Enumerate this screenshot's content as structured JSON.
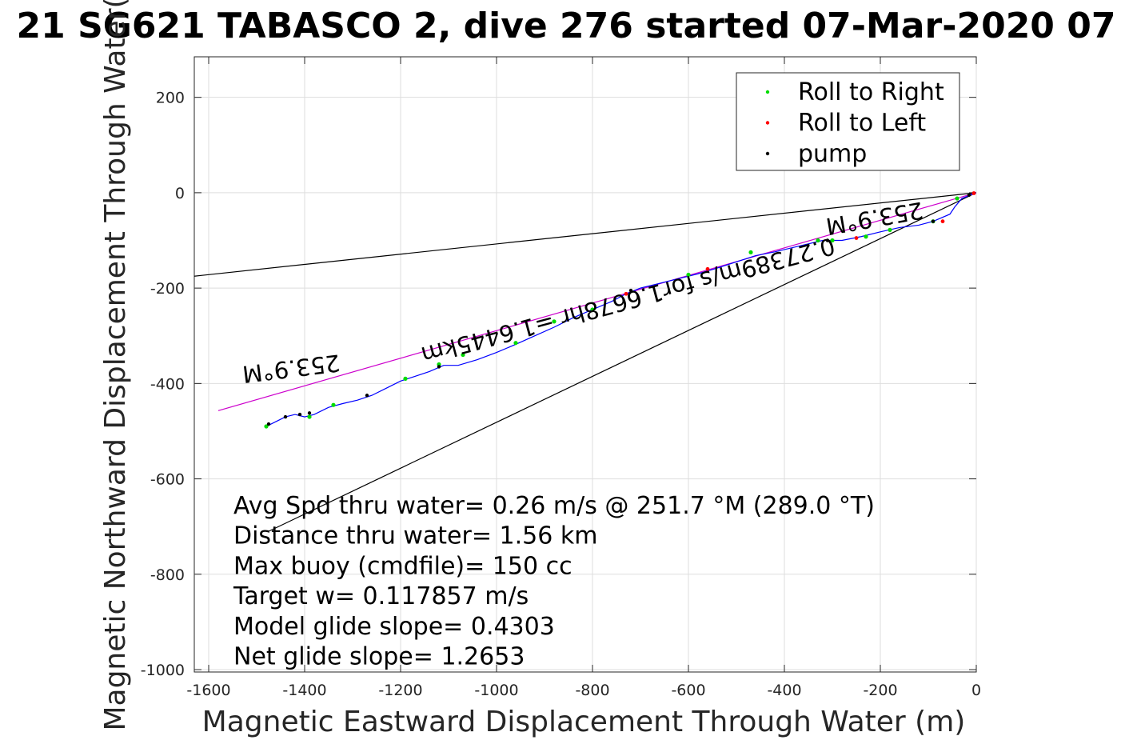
{
  "chart_data": {
    "type": "line",
    "title": "21 SG621 TABASCO 2, dive 276 started 07-Mar-2020 07",
    "xlabel": "Magnetic Eastward Displacement Through Water (m)",
    "ylabel": "Magnetic Northward Displacement Through Water(",
    "xlim": [
      -1630,
      0
    ],
    "ylim": [
      -1005,
      285
    ],
    "xticks": [
      -1600,
      -1400,
      -1200,
      -1000,
      -800,
      -600,
      -400,
      -200,
      0
    ],
    "yticks": [
      200,
      0,
      -200,
      -400,
      -600,
      -800,
      -1000
    ],
    "grid": true,
    "legend_position": "top-right",
    "legend": [
      {
        "label": "Roll to Right",
        "color": "#00dd00"
      },
      {
        "label": "Roll to Left",
        "color": "#ff0000"
      },
      {
        "label": "pump",
        "color": "#000000"
      }
    ],
    "reference_lines": [
      {
        "name": "heading-line-upper",
        "color": "#000000",
        "x": [
          0,
          -1630
        ],
        "y": [
          0,
          -175
        ]
      },
      {
        "name": "heading-line-lower",
        "color": "#000000",
        "x": [
          0,
          -1475
        ],
        "y": [
          0,
          -710
        ]
      },
      {
        "name": "mean-heading-line",
        "color": "#cc00cc",
        "x": [
          0,
          -1580
        ],
        "y": [
          0,
          -457
        ]
      }
    ],
    "track": {
      "color": "#0000ff",
      "x": [
        0,
        -30,
        -45,
        -55,
        -90,
        -120,
        -160,
        -200,
        -240,
        -280,
        -320,
        -370,
        -420,
        -460,
        -500,
        -540,
        -580,
        -620,
        -660,
        -700,
        -730,
        -760,
        -800,
        -840,
        -880,
        -920,
        -960,
        -1000,
        -1040,
        -1080,
        -1110,
        -1140,
        -1170,
        -1200,
        -1230,
        -1260,
        -1290,
        -1320,
        -1350,
        -1380,
        -1400,
        -1420,
        -1440,
        -1460,
        -1480
      ],
      "y": [
        0,
        -12,
        -30,
        -45,
        -60,
        -68,
        -73,
        -82,
        -92,
        -100,
        -100,
        -112,
        -124,
        -132,
        -145,
        -158,
        -170,
        -180,
        -190,
        -200,
        -212,
        -228,
        -245,
        -262,
        -282,
        -300,
        -318,
        -335,
        -350,
        -362,
        -362,
        -375,
        -385,
        -395,
        -410,
        -425,
        -435,
        -442,
        -450,
        -465,
        -470,
        -465,
        -470,
        -480,
        -490
      ]
    },
    "roll_right_x": [
      -40,
      -90,
      -180,
      -230,
      -300,
      -330,
      -470,
      -600,
      -800,
      -880,
      -960,
      -1070,
      -1120,
      -1190,
      -1340,
      -1390,
      -1480
    ],
    "roll_right_y": [
      -12,
      -60,
      -78,
      -92,
      -100,
      -100,
      -125,
      -172,
      -245,
      -270,
      -315,
      -340,
      -360,
      -390,
      -445,
      -470,
      -490
    ],
    "roll_left_x": [
      -5,
      -70,
      -250,
      -560,
      -730
    ],
    "roll_left_y": [
      -1,
      -60,
      -95,
      -160,
      -212
    ],
    "pump_x": [
      -15,
      -90,
      -310,
      -720,
      -1120,
      -1270,
      -1390,
      -1410,
      -1440,
      -1475
    ],
    "pump_y": [
      -5,
      -60,
      -100,
      -205,
      -365,
      -425,
      -462,
      -465,
      -470,
      -485
    ],
    "line_labels": [
      {
        "text": "253.9°M",
        "anchor_x": -1430,
        "anchor_y": -352,
        "rotation": 173
      },
      {
        "text": "0.27389m/s for1.6678hr =1.6445km",
        "anchor_x": -730,
        "anchor_y": -210,
        "rotation": 165
      },
      {
        "text": "253.9°M",
        "anchor_x": -215,
        "anchor_y": -37,
        "rotation": 170
      }
    ],
    "annotations": [
      "Avg Spd thru water=  0.26 m/s @ 251.7 °M (289.0 °T)",
      "Distance thru water=  1.56 km",
      "Max buoy (cmdfile)= 150 cc",
      "Target w= 0.117857 m/s",
      "Model glide slope= 0.4303",
      "Net glide slope= 1.2653"
    ]
  }
}
